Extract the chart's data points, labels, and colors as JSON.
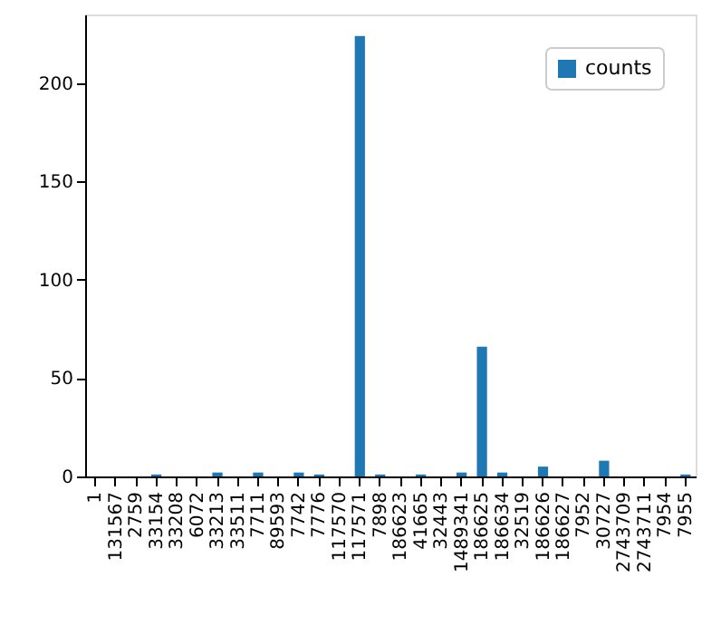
{
  "chart_data": {
    "type": "bar",
    "categories": [
      "1",
      "131567",
      "2759",
      "33154",
      "33208",
      "6072",
      "33213",
      "33511",
      "7711",
      "89593",
      "7742",
      "7776",
      "117570",
      "117571",
      "7898",
      "186623",
      "41665",
      "32443",
      "1489341",
      "186625",
      "186634",
      "32519",
      "186626",
      "186627",
      "7952",
      "30727",
      "2743709",
      "2743711",
      "7954",
      "7955"
    ],
    "series": [
      {
        "name": "counts",
        "color": "#1f77b4",
        "values": [
          0,
          0,
          0,
          1,
          0,
          0,
          2,
          0,
          2,
          0,
          2,
          1,
          0,
          224,
          1,
          0,
          1,
          0,
          2,
          66,
          2,
          0,
          5,
          0,
          0,
          8,
          0,
          0,
          0,
          1
        ]
      }
    ],
    "ylim": [
      0,
      235
    ],
    "yticks": [
      0,
      50,
      100,
      150,
      200
    ],
    "grid": false,
    "legend": "top right"
  }
}
